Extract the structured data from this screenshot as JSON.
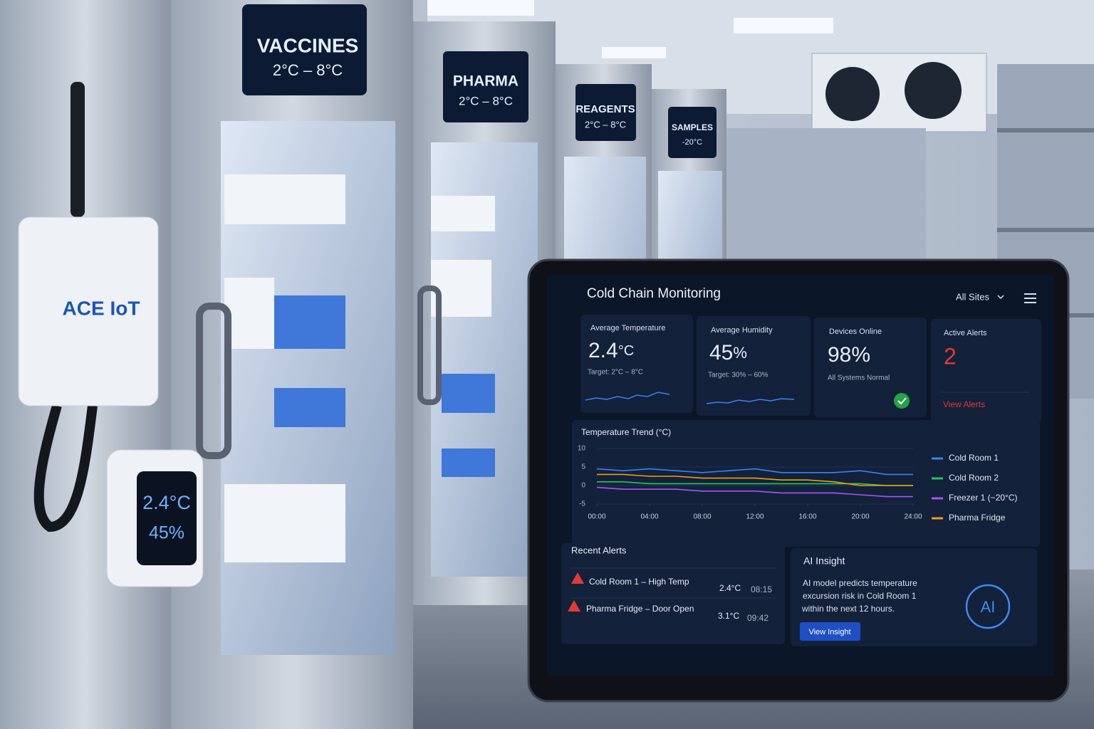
{
  "scene": {
    "fridge_labels": [
      {
        "name": "VACCINES",
        "range": "2°C – 8°C"
      },
      {
        "name": "PHARMA",
        "range": "2°C – 8°C"
      },
      {
        "name": "REAGENTS",
        "range": "2°C – 8°C"
      },
      {
        "name": "SAMPLES",
        "range": "-20°C"
      }
    ],
    "gateway_brand": "ACE IoT",
    "sensor": {
      "temperature": "2.4°C",
      "humidity": "45%"
    }
  },
  "dashboard": {
    "title": "Cold Chain Monitoring",
    "site_selector": "All Sites",
    "kpis": [
      {
        "label": "Average Temperature",
        "value": "2.4",
        "unit": "°C",
        "note": "Target: 2°C – 8°C"
      },
      {
        "label": "Average Humidity",
        "value": "45",
        "unit": "%",
        "note": "Target: 30% – 60%"
      },
      {
        "label": "Devices Online",
        "value": "98",
        "unit": "%",
        "note": "All Systems Normal"
      },
      {
        "label": "Active Alerts",
        "value": "2",
        "link": "View Alerts"
      }
    ],
    "trend": {
      "type": "line",
      "title": "Temperature Trend (°C)",
      "x": [
        0,
        2,
        4,
        6,
        8,
        10,
        12,
        14,
        16,
        18,
        20,
        22,
        24
      ],
      "xlim": [
        0,
        24
      ],
      "xticks": [
        {
          "value": 0,
          "label": "00:00"
        },
        {
          "value": 4,
          "label": "04:00"
        },
        {
          "value": 8,
          "label": "08:00"
        },
        {
          "value": 12,
          "label": "12:00"
        },
        {
          "value": 16,
          "label": "16:00"
        },
        {
          "value": 20,
          "label": "20:00"
        },
        {
          "value": 24,
          "label": "24:00"
        }
      ],
      "ylim": [
        -5,
        10
      ],
      "yticks": [
        -5,
        0,
        5,
        10
      ],
      "grid": true,
      "legend": "right",
      "series": [
        {
          "name": "Cold Room 1",
          "color": "#3b82f6",
          "values": [
            4.5,
            4,
            4.5,
            4,
            3.5,
            4,
            4.5,
            3.5,
            3.5,
            3.5,
            4,
            3,
            3
          ]
        },
        {
          "name": "Cold Room 2",
          "color": "#22c55e",
          "values": [
            1,
            1,
            0.5,
            0.5,
            0.5,
            0.5,
            0.5,
            0.5,
            0.5,
            0.5,
            0.5,
            0,
            0
          ]
        },
        {
          "name": "Freezer 1 (−20°C)",
          "color": "#a855f7",
          "values": [
            -0.5,
            -1,
            -1,
            -1,
            -1.5,
            -1.5,
            -1.5,
            -2,
            -2,
            -2,
            -2.5,
            -3,
            -3
          ]
        },
        {
          "name": "Pharma Fridge",
          "color": "#f59e0b",
          "values": [
            3,
            3,
            2.5,
            2.5,
            2,
            2,
            2,
            1.5,
            1.5,
            1,
            0,
            0,
            0
          ]
        }
      ]
    },
    "alerts": {
      "title": "Recent Alerts",
      "items": [
        {
          "text": "Cold Room 1 – High Temp",
          "value": "2.4°C",
          "time": "08:15"
        },
        {
          "text": "Pharma Fridge – Door Open",
          "value": "3.1°C",
          "time": "09:42"
        }
      ]
    },
    "insight": {
      "title": "AI Insight",
      "lines": [
        "AI model predicts temperature",
        "excursion risk in Cold Room 1",
        "within the next 12 hours."
      ],
      "button": "View Insight",
      "icon": "AI"
    }
  }
}
